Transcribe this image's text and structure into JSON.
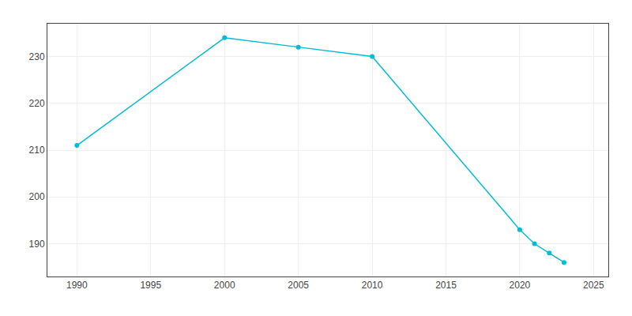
{
  "chart_data": {
    "type": "line",
    "x": [
      1990,
      2000,
      2005,
      2010,
      2020,
      2021,
      2022,
      2023
    ],
    "values": [
      211,
      234,
      232,
      230,
      193,
      190,
      188,
      186
    ],
    "color": "#00BCD4",
    "marker": "circle",
    "xlim": [
      1988,
      2026
    ],
    "ylim": [
      183,
      237
    ],
    "xticks": [
      1990,
      1995,
      2000,
      2005,
      2010,
      2015,
      2020,
      2025
    ],
    "yticks": [
      190,
      200,
      210,
      220,
      230
    ],
    "grid": true
  }
}
